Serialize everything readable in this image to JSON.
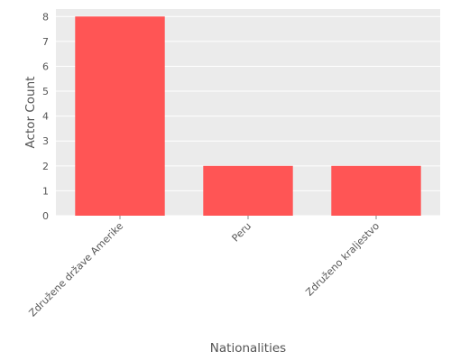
{
  "chart_data": {
    "type": "bar",
    "categories": [
      "Združene države Amerike",
      "Peru",
      "Združeno kraljestvo"
    ],
    "values": [
      8,
      2,
      2
    ],
    "title": "",
    "xlabel": "Nationalities",
    "ylabel": "Actor Count",
    "ylim": [
      0,
      8.3
    ],
    "yticks": [
      0,
      1,
      2,
      3,
      4,
      5,
      6,
      7,
      8
    ],
    "grid": true,
    "colors": {
      "bar": "#ff5555",
      "plot_background": "#ebebeb",
      "grid": "#ffffff",
      "text": "#555555"
    }
  }
}
